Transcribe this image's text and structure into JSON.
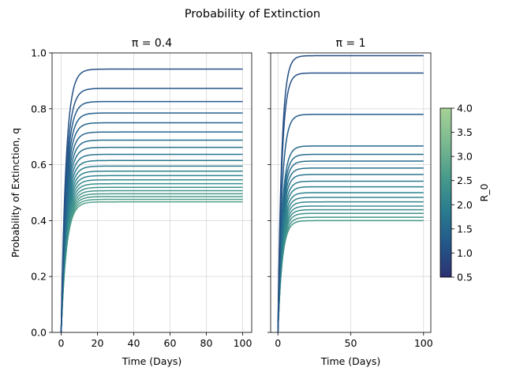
{
  "figure_title": "Probability of Extinction",
  "chart_data": [
    {
      "type": "line",
      "title": "π = 0.4",
      "xlabel": "Time (Days)",
      "ylabel": "Probability of Extinction, q",
      "xlim": [
        -5,
        105
      ],
      "ylim": [
        0,
        1
      ],
      "xticks": [
        0,
        20,
        40,
        60,
        80,
        100
      ],
      "yticks": [
        0.0,
        0.2,
        0.4,
        0.6,
        0.8,
        1.0
      ],
      "grid": true,
      "colorbar_variable": "R_0",
      "series": [
        {
          "r0": 1.06,
          "plateau": 0.942
        },
        {
          "r0": 1.15,
          "plateau": 0.873
        },
        {
          "r0": 1.23,
          "plateau": 0.826
        },
        {
          "r0": 1.31,
          "plateau": 0.785
        },
        {
          "r0": 1.4,
          "plateau": 0.75
        },
        {
          "r0": 1.48,
          "plateau": 0.717
        },
        {
          "r0": 1.56,
          "plateau": 0.688
        },
        {
          "r0": 1.65,
          "plateau": 0.662
        },
        {
          "r0": 1.73,
          "plateau": 0.637
        },
        {
          "r0": 1.81,
          "plateau": 0.615
        },
        {
          "r0": 1.9,
          "plateau": 0.595
        },
        {
          "r0": 1.98,
          "plateau": 0.577
        },
        {
          "r0": 2.06,
          "plateau": 0.561
        },
        {
          "r0": 2.15,
          "plateau": 0.546
        },
        {
          "r0": 2.23,
          "plateau": 0.532
        },
        {
          "r0": 2.31,
          "plateau": 0.519
        },
        {
          "r0": 2.4,
          "plateau": 0.507
        },
        {
          "r0": 2.48,
          "plateau": 0.496
        },
        {
          "r0": 2.56,
          "plateau": 0.486
        },
        {
          "r0": 2.65,
          "plateau": 0.476
        },
        {
          "r0": 2.73,
          "plateau": 0.467
        }
      ]
    },
    {
      "type": "line",
      "title": "π = 1",
      "xlabel": "Time (Days)",
      "ylabel": "",
      "xlim": [
        -5,
        105
      ],
      "ylim": [
        0,
        1
      ],
      "xticks": [
        0,
        50,
        100
      ],
      "yticks": [
        0.0,
        0.2,
        0.4,
        0.6,
        0.8,
        1.0
      ],
      "grid": true,
      "colorbar_variable": "R_0",
      "series": [
        {
          "r0": 1.01,
          "plateau": 0.99
        },
        {
          "r0": 1.08,
          "plateau": 0.928
        },
        {
          "r0": 1.28,
          "plateau": 0.78
        },
        {
          "r0": 1.5,
          "plateau": 0.667
        },
        {
          "r0": 1.57,
          "plateau": 0.637
        },
        {
          "r0": 1.63,
          "plateau": 0.613
        },
        {
          "r0": 1.7,
          "plateau": 0.588
        },
        {
          "r0": 1.77,
          "plateau": 0.565
        },
        {
          "r0": 1.85,
          "plateau": 0.541
        },
        {
          "r0": 1.92,
          "plateau": 0.521
        },
        {
          "r0": 2.0,
          "plateau": 0.5
        },
        {
          "r0": 2.07,
          "plateau": 0.483
        },
        {
          "r0": 2.14,
          "plateau": 0.467
        },
        {
          "r0": 2.21,
          "plateau": 0.452
        },
        {
          "r0": 2.28,
          "plateau": 0.439
        },
        {
          "r0": 2.35,
          "plateau": 0.426
        },
        {
          "r0": 2.43,
          "plateau": 0.412
        },
        {
          "r0": 2.5,
          "plateau": 0.4
        }
      ]
    }
  ],
  "colorbar": {
    "label": "R_0",
    "min": 0.5,
    "max": 4.0,
    "ticks": [
      0.5,
      1.0,
      1.5,
      2.0,
      2.5,
      3.0,
      3.5,
      4.0
    ],
    "colormap": "crest",
    "colors": [
      "#2c3172",
      "#23588b",
      "#2a7d8f",
      "#4a9c8a",
      "#7dba91",
      "#a5d296"
    ]
  }
}
